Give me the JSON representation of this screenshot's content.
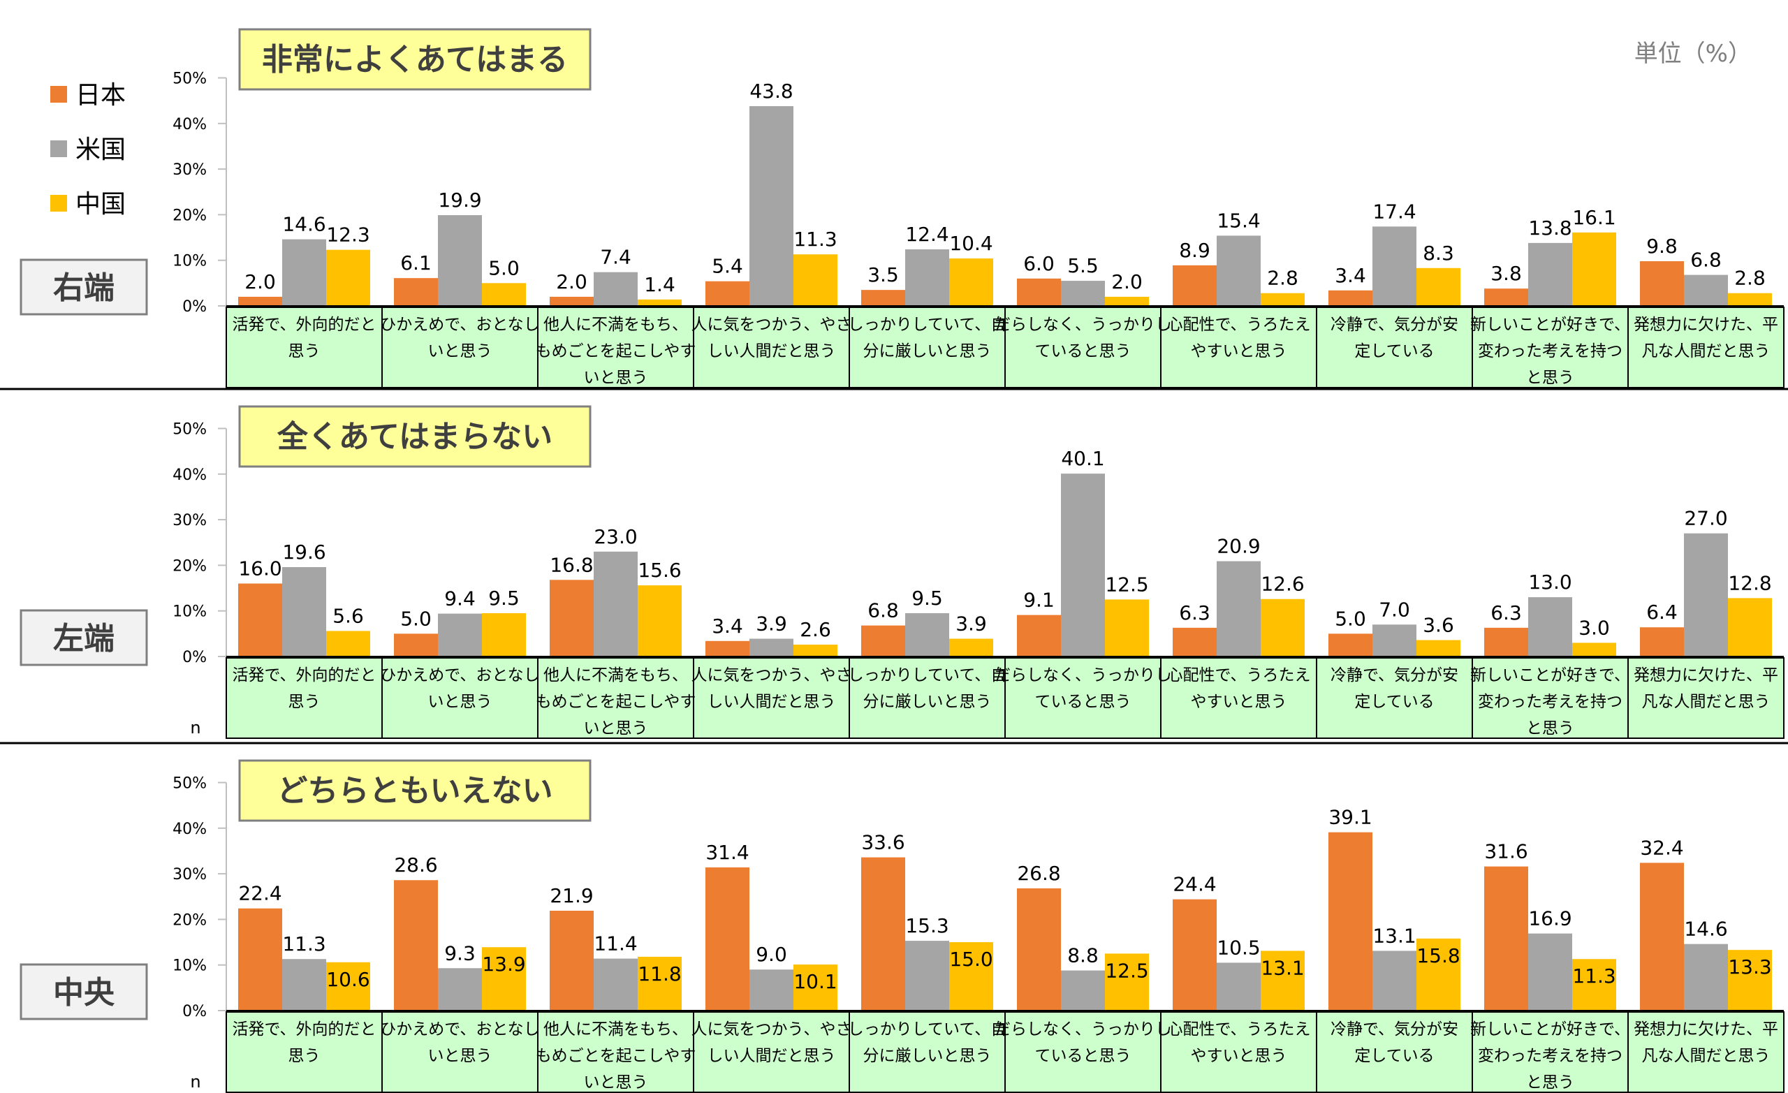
{
  "unit_label": "単位（%）",
  "n_label": "n",
  "legend": [
    {
      "name": "日本",
      "color": "#ED7D31"
    },
    {
      "name": "米国",
      "color": "#A5A5A5"
    },
    {
      "name": "中国",
      "color": "#FFC000"
    }
  ],
  "categories": [
    "活発で、外向的だと思う",
    "ひかえめで、おとなしいと思う",
    "他人に不満をもち、もめごとを起こしやすいと思う",
    "人に気をつかう、やさしい人間だと思う",
    "しっかりしていて、自分に厳しいと思う",
    "だらしなく、うっかりしていると思う",
    "心配性で、うろたえやすいと思う",
    "冷静で、気分が安定している",
    "新しいことが好きで、変わった考えを持つと思う",
    "発想力に欠けた、平凡な人間だと思う"
  ],
  "category_lines": [
    [
      "活発で、外向的だと",
      "思う"
    ],
    [
      "ひかえめで、おとなし",
      "いと思う"
    ],
    [
      "他人に不満をもち、",
      "もめごとを起こしやす",
      "いと思う"
    ],
    [
      "人に気をつかう、やさ",
      "しい人間だと思う"
    ],
    [
      "しっかりしていて、自",
      "分に厳しいと思う"
    ],
    [
      "だらしなく、うっかりし",
      "ていると思う"
    ],
    [
      "心配性で、うろたえ",
      "やすいと思う"
    ],
    [
      "冷静で、気分が安",
      "定している"
    ],
    [
      "新しいことが好きで、",
      "変わった考えを持つ",
      "と思う"
    ],
    [
      "発想力に欠けた、平",
      "凡な人間だと思う"
    ]
  ],
  "chart_data": [
    {
      "type": "bar",
      "title": "非常によくあてはまる",
      "side_label": "右端",
      "ylim": [
        0,
        50
      ],
      "yticks": [
        "0%",
        "10%",
        "20%",
        "30%",
        "40%",
        "50%"
      ],
      "show_n": false,
      "series": [
        {
          "name": "日本",
          "values": [
            2.0,
            6.1,
            2.0,
            5.4,
            3.5,
            6.0,
            8.9,
            3.4,
            3.8,
            9.8
          ]
        },
        {
          "name": "米国",
          "values": [
            14.6,
            19.9,
            7.4,
            43.8,
            12.4,
            5.5,
            15.4,
            17.4,
            13.8,
            6.8
          ]
        },
        {
          "name": "中国",
          "values": [
            12.3,
            5.0,
            1.4,
            11.3,
            10.4,
            2.0,
            2.8,
            8.3,
            16.1,
            2.8
          ]
        }
      ]
    },
    {
      "type": "bar",
      "title": "全くあてはまらない",
      "side_label": "左端",
      "ylim": [
        0,
        50
      ],
      "yticks": [
        "0%",
        "10%",
        "20%",
        "30%",
        "40%",
        "50%"
      ],
      "show_n": true,
      "series": [
        {
          "name": "日本",
          "values": [
            16.0,
            5.0,
            16.8,
            3.4,
            6.8,
            9.1,
            6.3,
            5.0,
            6.3,
            6.4
          ]
        },
        {
          "name": "米国",
          "values": [
            19.6,
            9.4,
            23.0,
            3.9,
            9.5,
            40.1,
            20.9,
            7.0,
            13.0,
            27.0
          ]
        },
        {
          "name": "中国",
          "values": [
            5.6,
            9.5,
            15.6,
            2.6,
            3.9,
            12.5,
            12.6,
            3.6,
            3.0,
            12.8
          ]
        }
      ]
    },
    {
      "type": "bar",
      "title": "どちらともいえない",
      "side_label": "中央",
      "ylim": [
        0,
        50
      ],
      "yticks": [
        "0%",
        "10%",
        "20%",
        "30%",
        "40%",
        "50%"
      ],
      "show_n": true,
      "series": [
        {
          "name": "日本",
          "values": [
            22.4,
            28.6,
            21.9,
            31.4,
            33.6,
            26.8,
            24.4,
            39.1,
            31.6,
            32.4
          ]
        },
        {
          "name": "米国",
          "values": [
            11.3,
            9.3,
            11.4,
            9.0,
            15.3,
            8.8,
            10.5,
            13.1,
            16.9,
            14.6
          ]
        },
        {
          "name": "中国",
          "values": [
            10.6,
            13.9,
            11.8,
            10.1,
            15.0,
            12.5,
            13.1,
            15.8,
            11.3,
            13.3
          ]
        }
      ]
    }
  ]
}
